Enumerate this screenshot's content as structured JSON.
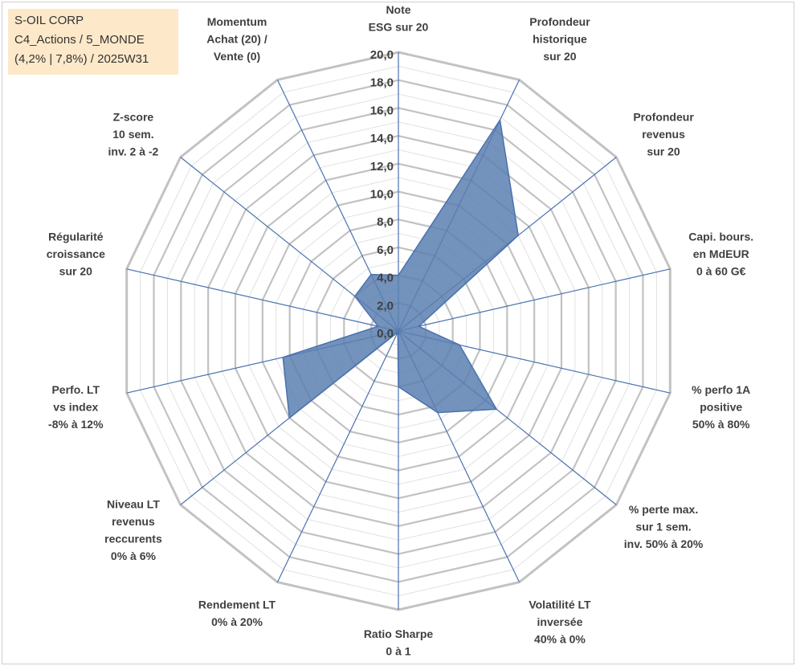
{
  "info_box": {
    "line1": "S-OIL CORP",
    "line2": "C4_Actions / 5_MONDE",
    "line3": "(4,2% | 7,8%) / 2025W31"
  },
  "chart_data": {
    "type": "radar",
    "title": "",
    "rmin": 0,
    "rmax": 20,
    "tick_step": 2,
    "ticks": [
      "0,0",
      "2,0",
      "4,0",
      "6,0",
      "8,0",
      "10,0",
      "12,0",
      "14,0",
      "16,0",
      "18,0",
      "20,0"
    ],
    "grid": true,
    "axes": [
      [
        "Note",
        "ESG sur 20"
      ],
      [
        "Profondeur",
        "historique",
        "sur 20"
      ],
      [
        "Profondeur",
        "revenus",
        "sur 20"
      ],
      [
        "Capi. bours.",
        "en MdEUR",
        "0 à 60 G€"
      ],
      [
        "% perfo 1A",
        "positive",
        "50% à 80%"
      ],
      [
        "% perte max.",
        "sur 1 sem.",
        "inv. 50% à 20%"
      ],
      [
        "Volatilité LT",
        "inversée",
        "40% à 0%"
      ],
      [
        "Ratio Sharpe",
        "0 à 1"
      ],
      [
        "Rendement LT",
        "0% à 20%"
      ],
      [
        "Niveau LT",
        "revenus",
        "reccurents",
        "0% à 6%"
      ],
      [
        "Perfo. LT",
        "vs index",
        "-8% à 12%"
      ],
      [
        "Régularité",
        "croissance",
        "sur 20"
      ],
      [
        "Z-score",
        "10 sem.",
        "inv. 2 à -2"
      ],
      [
        "Momentum",
        "Achat (20) /",
        "Vente (0)"
      ]
    ],
    "series": [
      {
        "values": [
          4.0,
          16.8,
          11.0,
          1.5,
          4.5,
          9.0,
          6.5,
          4.0,
          0.1,
          10.0,
          8.5,
          1.5,
          4.0,
          4.5
        ]
      }
    ],
    "colors": {
      "fill": "#5a7fb0",
      "stroke": "#4a72b0",
      "grid": "#c6c6c6",
      "spoke": "#4a72b0"
    }
  }
}
